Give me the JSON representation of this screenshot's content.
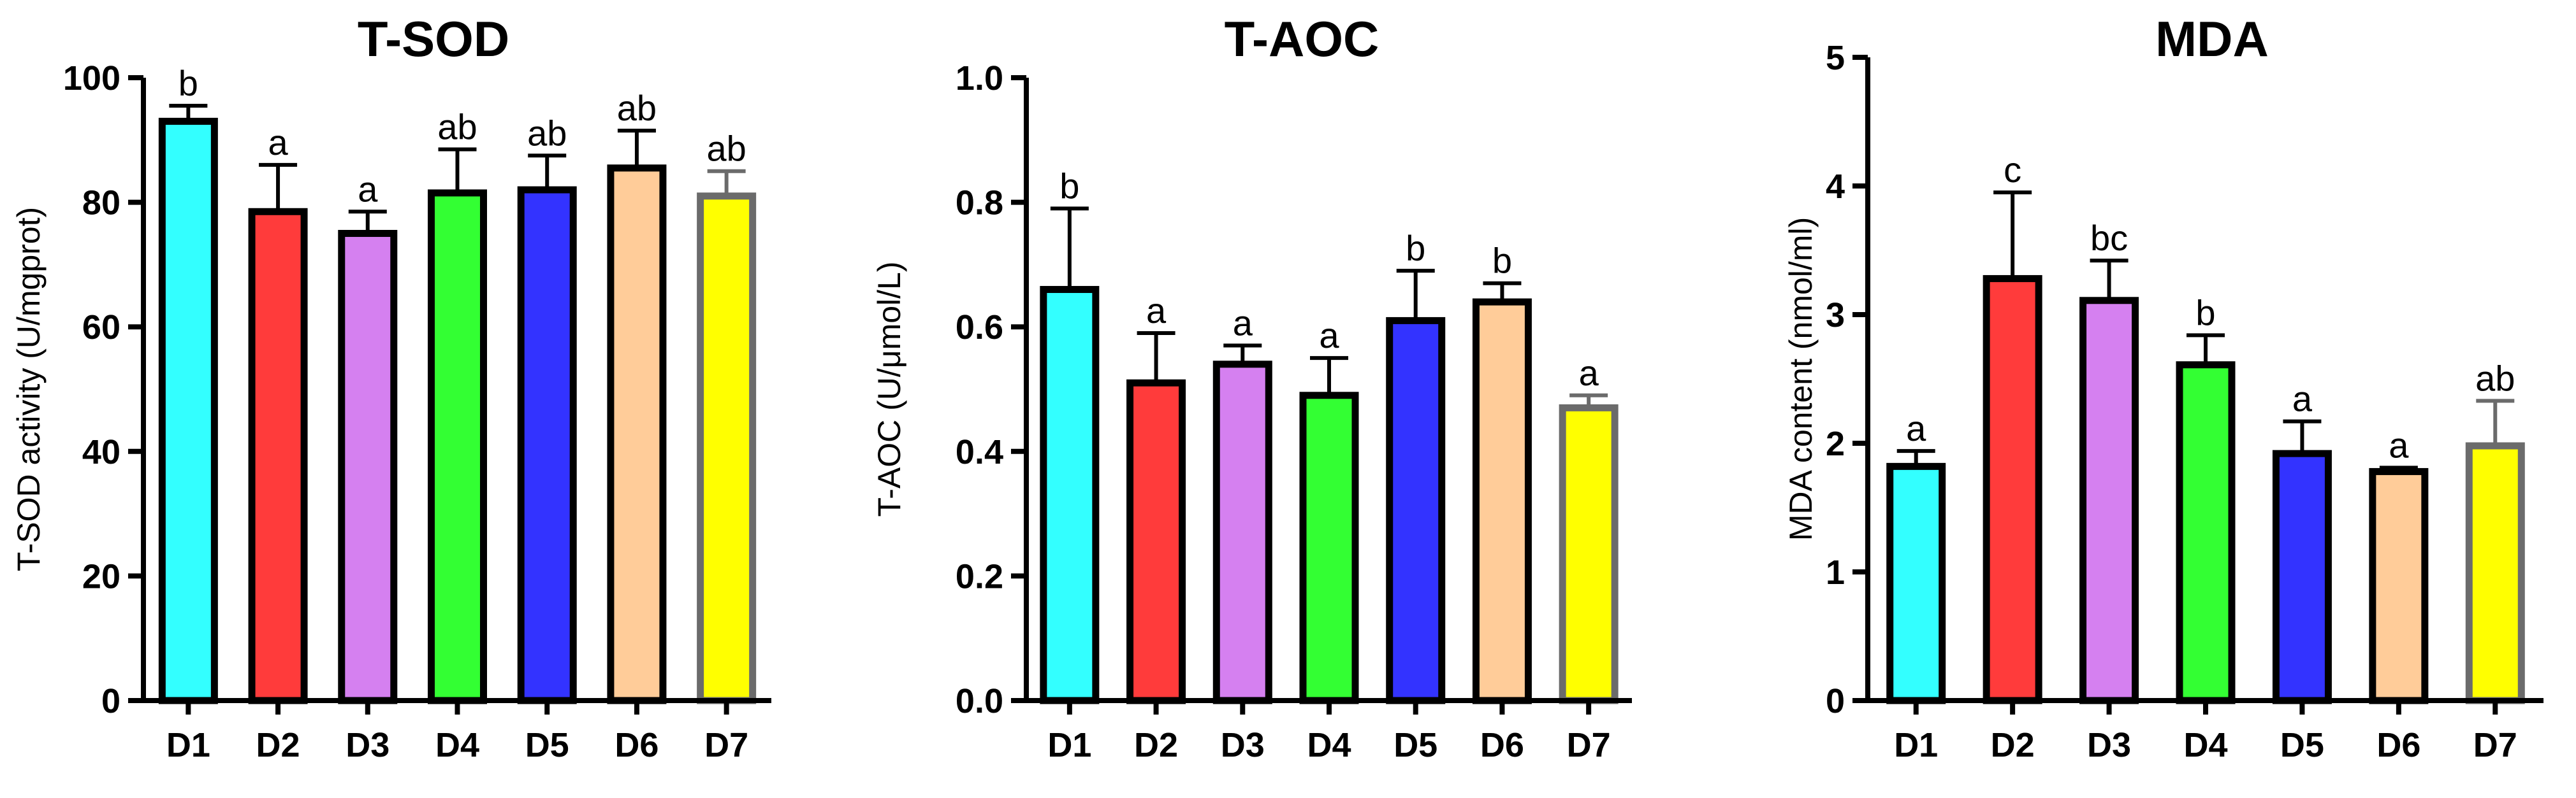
{
  "chart_data": [
    {
      "type": "bar",
      "title": "T-SOD",
      "ylabel": "T-SOD activity (U/mgprot)",
      "xlabel": "",
      "ylim": [
        0,
        100
      ],
      "yticks": [
        "0",
        "20",
        "40",
        "60",
        "80",
        "100"
      ],
      "categories": [
        "D1",
        "D2",
        "D3",
        "D4",
        "D5",
        "D6",
        "D7"
      ],
      "values": [
        93,
        78.5,
        75,
        81.5,
        82,
        85.5,
        81
      ],
      "errors": [
        2.5,
        7.5,
        3.5,
        7,
        5.5,
        6,
        4
      ],
      "significance": [
        "b",
        "a",
        "a",
        "ab",
        "ab",
        "ab",
        "ab"
      ],
      "colors": [
        "#33ffff",
        "#ff3b3b",
        "#d580f0",
        "#33ff33",
        "#3333ff",
        "#ffcc99",
        "#ffff00"
      ]
    },
    {
      "type": "bar",
      "title": "T-AOC",
      "ylabel": "T-AOC (U/μmol/L)",
      "xlabel": "",
      "ylim": [
        0,
        1.0
      ],
      "yticks": [
        "0.0",
        "0.2",
        "0.4",
        "0.6",
        "0.8",
        "1.0"
      ],
      "categories": [
        "D1",
        "D2",
        "D3",
        "D4",
        "D5",
        "D6",
        "D7"
      ],
      "values": [
        0.66,
        0.51,
        0.54,
        0.49,
        0.61,
        0.64,
        0.47
      ],
      "errors": [
        0.13,
        0.08,
        0.03,
        0.06,
        0.08,
        0.03,
        0.02
      ],
      "significance": [
        "b",
        "a",
        "a",
        "a",
        "b",
        "b",
        "a"
      ],
      "colors": [
        "#33ffff",
        "#ff3b3b",
        "#d580f0",
        "#33ff33",
        "#3333ff",
        "#ffcc99",
        "#ffff00"
      ]
    },
    {
      "type": "bar",
      "title": "MDA",
      "ylabel": "MDA content (nmol/ml)",
      "xlabel": "",
      "ylim": [
        0,
        5
      ],
      "yticks": [
        "0",
        "1",
        "2",
        "3",
        "4",
        "5"
      ],
      "categories": [
        "D1",
        "D2",
        "D3",
        "D4",
        "D5",
        "D6",
        "D7"
      ],
      "values": [
        1.82,
        3.28,
        3.11,
        2.61,
        1.92,
        1.78,
        1.98
      ],
      "errors": [
        0.12,
        0.67,
        0.31,
        0.23,
        0.25,
        0.03,
        0.35
      ],
      "significance": [
        "a",
        "c",
        "bc",
        "b",
        "a",
        "a",
        "ab"
      ],
      "colors": [
        "#33ffff",
        "#ff3b3b",
        "#d580f0",
        "#33ff33",
        "#3333ff",
        "#ffcc99",
        "#ffff00"
      ]
    }
  ]
}
